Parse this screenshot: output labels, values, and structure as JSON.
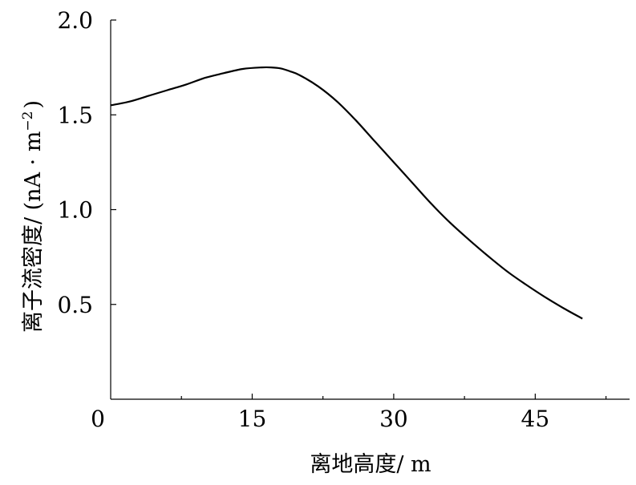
{
  "chart_data": {
    "type": "line",
    "xlabel": "离地高度/ m",
    "ylabel_main": "离子流密度/ (nA · m",
    "ylabel_exp": "−2",
    "ylabel_close": ")",
    "xlim": [
      0,
      55
    ],
    "ylim": [
      0,
      2.0
    ],
    "xticks": [
      0,
      15,
      30,
      45
    ],
    "xtick_labels": [
      "0",
      "15",
      "30",
      "45"
    ],
    "xminor": [
      7.5,
      22.5,
      37.5,
      52.5
    ],
    "yticks": [
      0.5,
      1.0,
      1.5,
      2.0
    ],
    "ytick_labels": [
      "0.5",
      "1.0",
      "1.5",
      "2.0"
    ],
    "grid": false,
    "series": [
      {
        "color": "#000000",
        "x": [
          0,
          2,
          4,
          6,
          8,
          10,
          12,
          14,
          16,
          17,
          18,
          19,
          20,
          22,
          24,
          26,
          28,
          30,
          32,
          34,
          36,
          38,
          40,
          42,
          44,
          46,
          48,
          50
        ],
        "y": [
          1.55,
          1.57,
          1.6,
          1.63,
          1.66,
          1.695,
          1.72,
          1.742,
          1.75,
          1.75,
          1.745,
          1.73,
          1.71,
          1.65,
          1.57,
          1.47,
          1.36,
          1.25,
          1.14,
          1.03,
          0.93,
          0.84,
          0.755,
          0.675,
          0.605,
          0.54,
          0.48,
          0.425
        ]
      }
    ]
  }
}
